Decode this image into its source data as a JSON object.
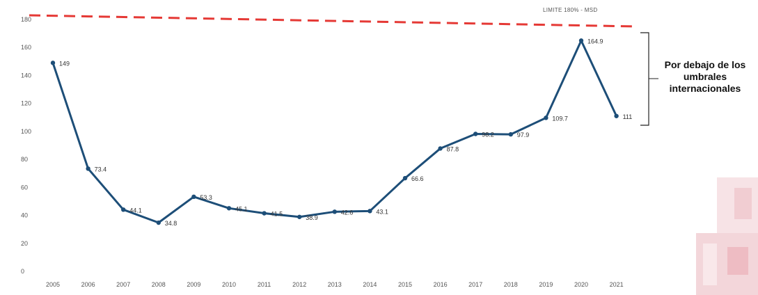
{
  "chart_data": {
    "type": "line",
    "title": "",
    "xlabel": "",
    "ylabel": "",
    "categories": [
      "2005",
      "2006",
      "2007",
      "2008",
      "2009",
      "2010",
      "2011",
      "2012",
      "2013",
      "2014",
      "2015",
      "2016",
      "2017",
      "2018",
      "2019",
      "2020",
      "2021"
    ],
    "series": [
      {
        "values": [
          149,
          73.4,
          44.1,
          34.8,
          53.3,
          45.1,
          41.5,
          38.9,
          42.6,
          43.1,
          66.6,
          87.8,
          98.2,
          97.9,
          109.7,
          164.9,
          111
        ],
        "labels": [
          "149",
          "73.4",
          "44.1",
          "34.8",
          "53.3",
          "45.1",
          "41.5",
          "38.9",
          "42.6",
          "43.1",
          "66.6",
          "87.8",
          "98.2",
          "97.9",
          "109.7",
          "164.9",
          "111"
        ],
        "color": "#1d4e78"
      }
    ],
    "yticks": [
      "0",
      "20",
      "40",
      "60",
      "80",
      "100",
      "120",
      "140",
      "160",
      "180"
    ],
    "ylim": [
      0,
      180
    ],
    "grid": false,
    "reference_line": {
      "label": "LIMITE 180% - MSD",
      "color": "#e53935"
    },
    "annotation": "Por debajo de los umbrales internacionales"
  }
}
